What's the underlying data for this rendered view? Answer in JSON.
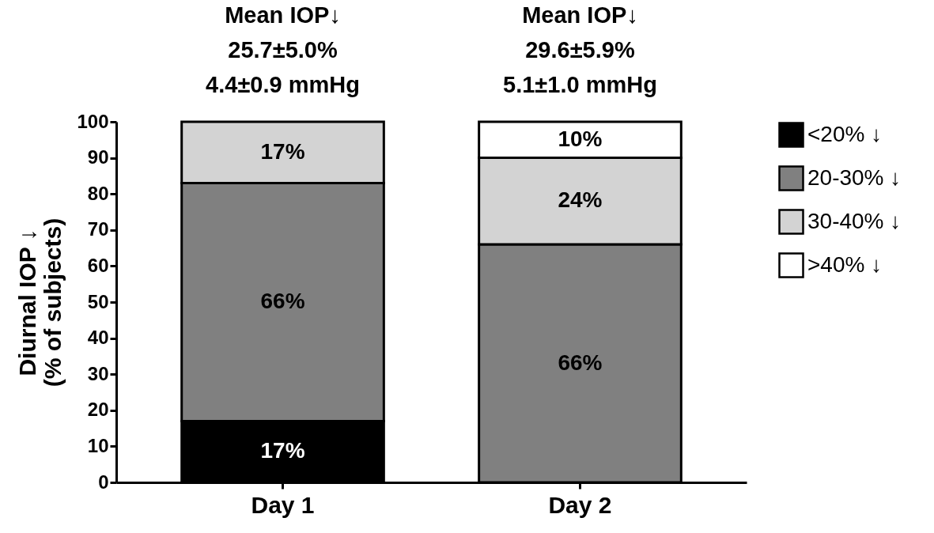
{
  "chart_data": {
    "type": "bar",
    "stacked": true,
    "categories": [
      "Day 1",
      "Day 2"
    ],
    "ylabel": "Diurnal IOP ↓\n(% of subjects)",
    "series": [
      {
        "name": "<20% ↓",
        "color": "#000000",
        "values": [
          17,
          null
        ],
        "value_labels": [
          "17%",
          null
        ]
      },
      {
        "name": "20-30% ↓",
        "color": "#808080",
        "values": [
          66,
          66
        ],
        "value_labels": [
          "66%",
          "66%"
        ]
      },
      {
        "name": "30-40% ↓",
        "color": "#d3d3d3",
        "values": [
          17,
          24
        ],
        "value_labels": [
          "17%",
          "24%"
        ]
      },
      {
        "name": ">40% ↓",
        "color": "#ffffff",
        "values": [
          null,
          10
        ],
        "value_labels": [
          null,
          "10%"
        ]
      }
    ],
    "ylim": [
      0,
      100
    ],
    "yticks": [
      0,
      10,
      20,
      30,
      40,
      50,
      60,
      70,
      80,
      90,
      100
    ],
    "grid": false,
    "legend": "right",
    "annotations": [
      "Mean IOP↓\n25.7±5.0%\n4.4±0.9 mmHg",
      "Mean IOP↓\n29.6±5.9%\n5.1±1.0 mmHg"
    ]
  }
}
